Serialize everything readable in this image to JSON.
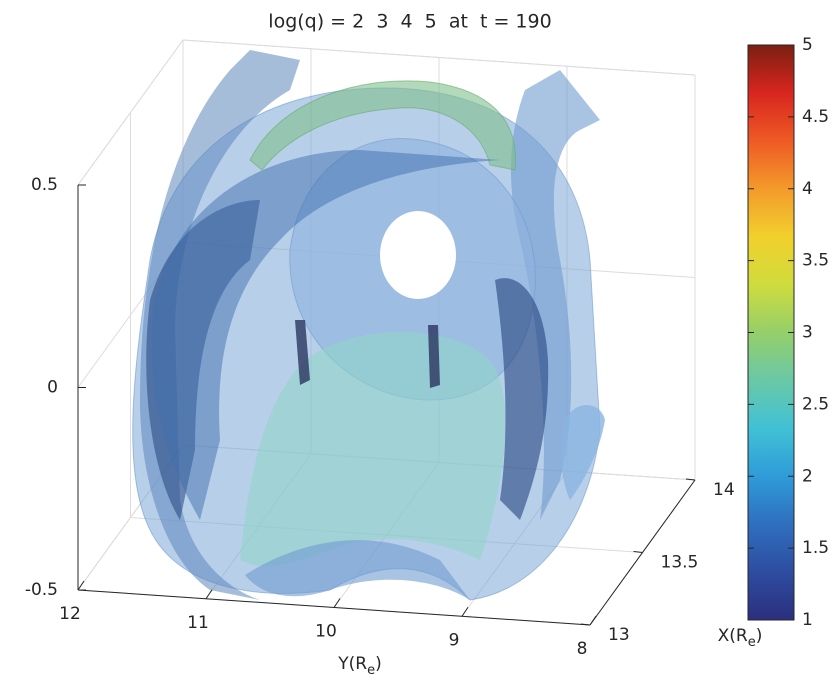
{
  "chart_data": {
    "type": "isosurface3d",
    "title": "log(q) = 2  3  4  5  at  t = 190",
    "xlabel": [
      "X(R",
      "e",
      ")"
    ],
    "ylabel": [
      "Y(R",
      "e",
      ")"
    ],
    "xlim": [
      13,
      14
    ],
    "ylim": [
      8,
      12
    ],
    "zlim": [
      -0.5,
      0.5
    ],
    "ydir": "reverse",
    "xticks": [
      13,
      13.5,
      14
    ],
    "yticks": [
      8,
      9,
      10,
      11,
      12
    ],
    "zticks": [
      -0.5,
      0,
      0.5
    ],
    "grid": true,
    "clim": [
      1,
      5
    ],
    "cticks": [
      1,
      1.5,
      2,
      2.5,
      3,
      3.5,
      4,
      4.5,
      5
    ],
    "colormap": [
      "#2b2f7e",
      "#2e4da0",
      "#2f6fbf",
      "#2f9bd8",
      "#41c1d6",
      "#6ac8a6",
      "#95cf6a",
      "#cfdc3c",
      "#f2d02d",
      "#f39a2b",
      "#ee5a25",
      "#d8261f",
      "#7a1f12"
    ]
  }
}
